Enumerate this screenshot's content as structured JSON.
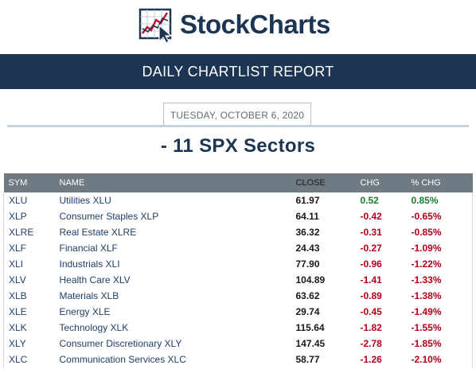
{
  "header": {
    "logo_text": "StockCharts"
  },
  "banner": {
    "title": "DAILY CHARTLIST REPORT"
  },
  "report": {
    "date": "TUESDAY, OCTOBER 6, 2020",
    "list_title": "- 11 SPX Sectors"
  },
  "table": {
    "columns": {
      "sym": "SYM",
      "name": "NAME",
      "close": "CLOSE",
      "chg": "CHG",
      "pct": "% CHG"
    },
    "rows": [
      {
        "sym": "XLU",
        "name": "Utilities XLU",
        "close": "61.97",
        "chg": "0.52",
        "pct": "0.85%"
      },
      {
        "sym": "XLP",
        "name": "Consumer Staples XLP",
        "close": "64.11",
        "chg": "-0.42",
        "pct": "-0.65%"
      },
      {
        "sym": "XLRE",
        "name": "Real Estate XLRE",
        "close": "36.32",
        "chg": "-0.31",
        "pct": "-0.85%"
      },
      {
        "sym": "XLF",
        "name": "Financial XLF",
        "close": "24.43",
        "chg": "-0.27",
        "pct": "-1.09%"
      },
      {
        "sym": "XLI",
        "name": "Industrials XLI",
        "close": "77.90",
        "chg": "-0.96",
        "pct": "-1.22%"
      },
      {
        "sym": "XLV",
        "name": "Health Care XLV",
        "close": "104.89",
        "chg": "-1.41",
        "pct": "-1.33%"
      },
      {
        "sym": "XLB",
        "name": "Materials XLB",
        "close": "63.62",
        "chg": "-0.89",
        "pct": "-1.38%"
      },
      {
        "sym": "XLE",
        "name": "Energy XLE",
        "close": "29.74",
        "chg": "-0.45",
        "pct": "-1.49%"
      },
      {
        "sym": "XLK",
        "name": "Technology XLK",
        "close": "115.64",
        "chg": "-1.82",
        "pct": "-1.55%"
      },
      {
        "sym": "XLY",
        "name": "Consumer Discretionary XLY",
        "close": "147.45",
        "chg": "-2.78",
        "pct": "-1.85%"
      },
      {
        "sym": "XLC",
        "name": "Communication Services XLC",
        "close": "58.77",
        "chg": "-1.26",
        "pct": "-2.10%"
      }
    ]
  },
  "colors": {
    "navy": "#1c3553",
    "header_gray": "#707a82",
    "positive": "#1d7a2e",
    "negative": "#b3001b"
  },
  "icons": {
    "logo": "stock-chart-cursor-icon"
  }
}
